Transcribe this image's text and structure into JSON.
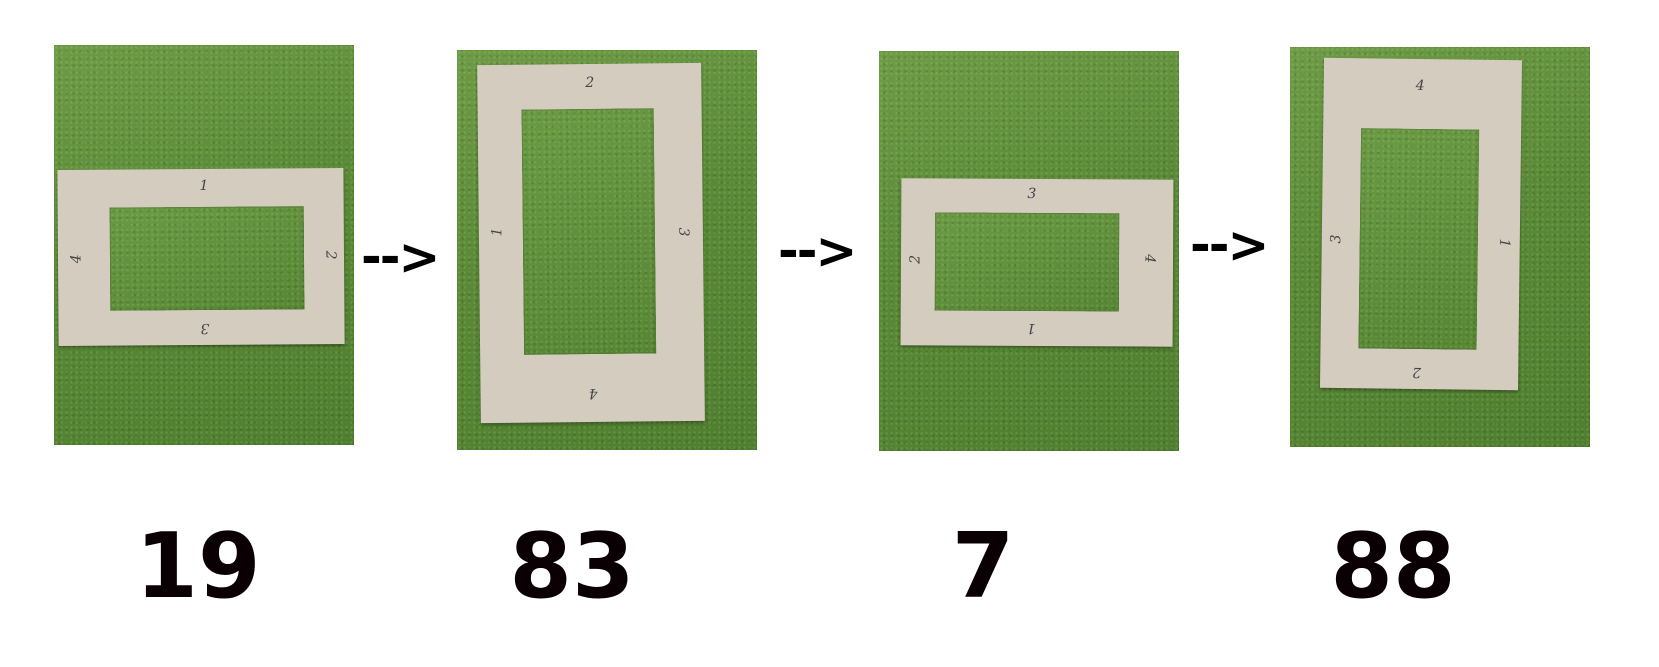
{
  "panels": [
    {
      "sides": {
        "top": "1",
        "right": "2",
        "bottom": "3",
        "left": "4"
      },
      "score": "19"
    },
    {
      "sides": {
        "top": "2",
        "right": "3",
        "bottom": "4",
        "left": "1"
      },
      "score": "83"
    },
    {
      "sides": {
        "top": "3",
        "right": "4",
        "bottom": "1",
        "left": "2"
      },
      "score": "7"
    },
    {
      "sides": {
        "top": "4",
        "right": "1",
        "bottom": "2",
        "left": "3"
      },
      "score": "88"
    }
  ],
  "arrows": [
    "-->",
    "-->",
    "-->"
  ],
  "colors": {
    "grass": "#5f8f3a",
    "cardboard": "#d5ccc0",
    "text": "#0a0004"
  }
}
